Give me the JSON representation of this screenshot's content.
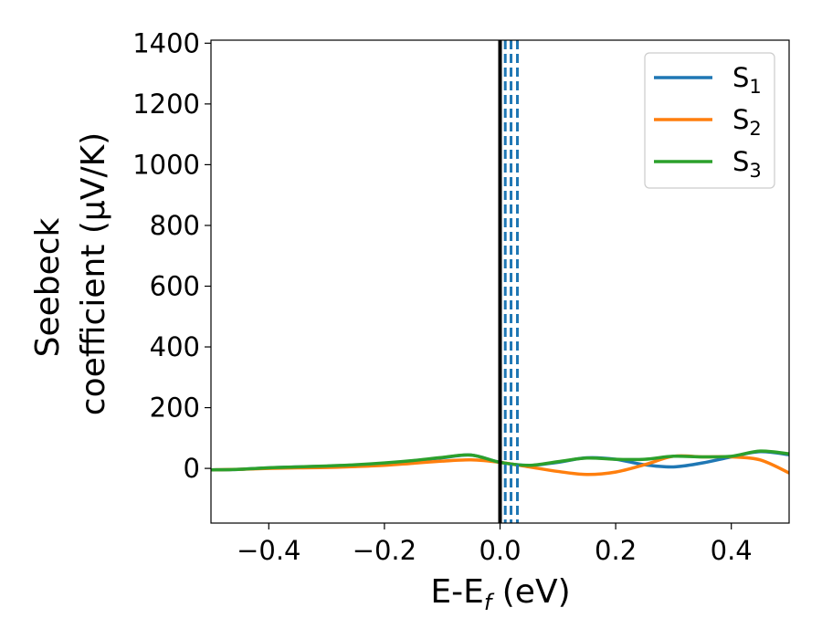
{
  "chart_data": {
    "type": "line",
    "xlabel": "E-E",
    "xlabel_sub": "f",
    "xlabel_unit": " (eV)",
    "ylabel_line1": "Seebeck",
    "ylabel_line2": "coefficient  (μV/K)",
    "xlim": [
      -0.5,
      0.5
    ],
    "ylim": [
      -180,
      1410
    ],
    "xticks": [
      -0.4,
      -0.2,
      0.0,
      0.2,
      0.4
    ],
    "xtick_labels": [
      "−0.4",
      "−0.2",
      "0.0",
      "0.2",
      "0.4"
    ],
    "yticks": [
      0,
      200,
      400,
      600,
      800,
      1000,
      1200,
      1400
    ],
    "ytick_labels": [
      "0",
      "200",
      "400",
      "600",
      "800",
      "1000",
      "1200",
      "1400"
    ],
    "grid": false,
    "legend_position": "top-right",
    "fermi_line": {
      "x": 0.0,
      "color": "#000000"
    },
    "dashed_lines": {
      "x": [
        0.009,
        0.019,
        0.03
      ],
      "color": "#1f77b4"
    },
    "series": [
      {
        "name": "S",
        "sub": "1",
        "color": "#1f77b4",
        "x": [
          -0.5,
          -0.45,
          -0.4,
          -0.35,
          -0.3,
          -0.25,
          -0.2,
          -0.15,
          -0.1,
          -0.05,
          0.0,
          0.05,
          0.1,
          0.15,
          0.2,
          0.25,
          0.3,
          0.35,
          0.4,
          0.45,
          0.5
        ],
        "y": [
          -5,
          -3,
          2,
          5,
          7,
          10,
          15,
          25,
          35,
          44,
          20,
          10,
          20,
          35,
          30,
          12,
          5,
          18,
          38,
          55,
          45
        ]
      },
      {
        "name": "S",
        "sub": "2",
        "color": "#ff7f0e",
        "x": [
          -0.5,
          -0.45,
          -0.4,
          -0.35,
          -0.3,
          -0.25,
          -0.2,
          -0.15,
          -0.1,
          -0.05,
          0.0,
          0.05,
          0.1,
          0.15,
          0.2,
          0.25,
          0.3,
          0.35,
          0.4,
          0.45,
          0.5
        ],
        "y": [
          -5,
          -3,
          0,
          2,
          3,
          6,
          10,
          17,
          24,
          28,
          20,
          5,
          -10,
          -20,
          -12,
          12,
          40,
          38,
          38,
          28,
          -15
        ]
      },
      {
        "name": "S",
        "sub": "3",
        "color": "#2ca02c",
        "x": [
          -0.5,
          -0.45,
          -0.4,
          -0.35,
          -0.3,
          -0.25,
          -0.2,
          -0.15,
          -0.1,
          -0.05,
          0.0,
          0.05,
          0.1,
          0.15,
          0.2,
          0.25,
          0.3,
          0.35,
          0.4,
          0.45,
          0.5
        ],
        "y": [
          -5,
          -3,
          2,
          5,
          8,
          12,
          18,
          26,
          36,
          44,
          20,
          10,
          22,
          34,
          30,
          30,
          40,
          38,
          40,
          57,
          48
        ]
      }
    ]
  }
}
